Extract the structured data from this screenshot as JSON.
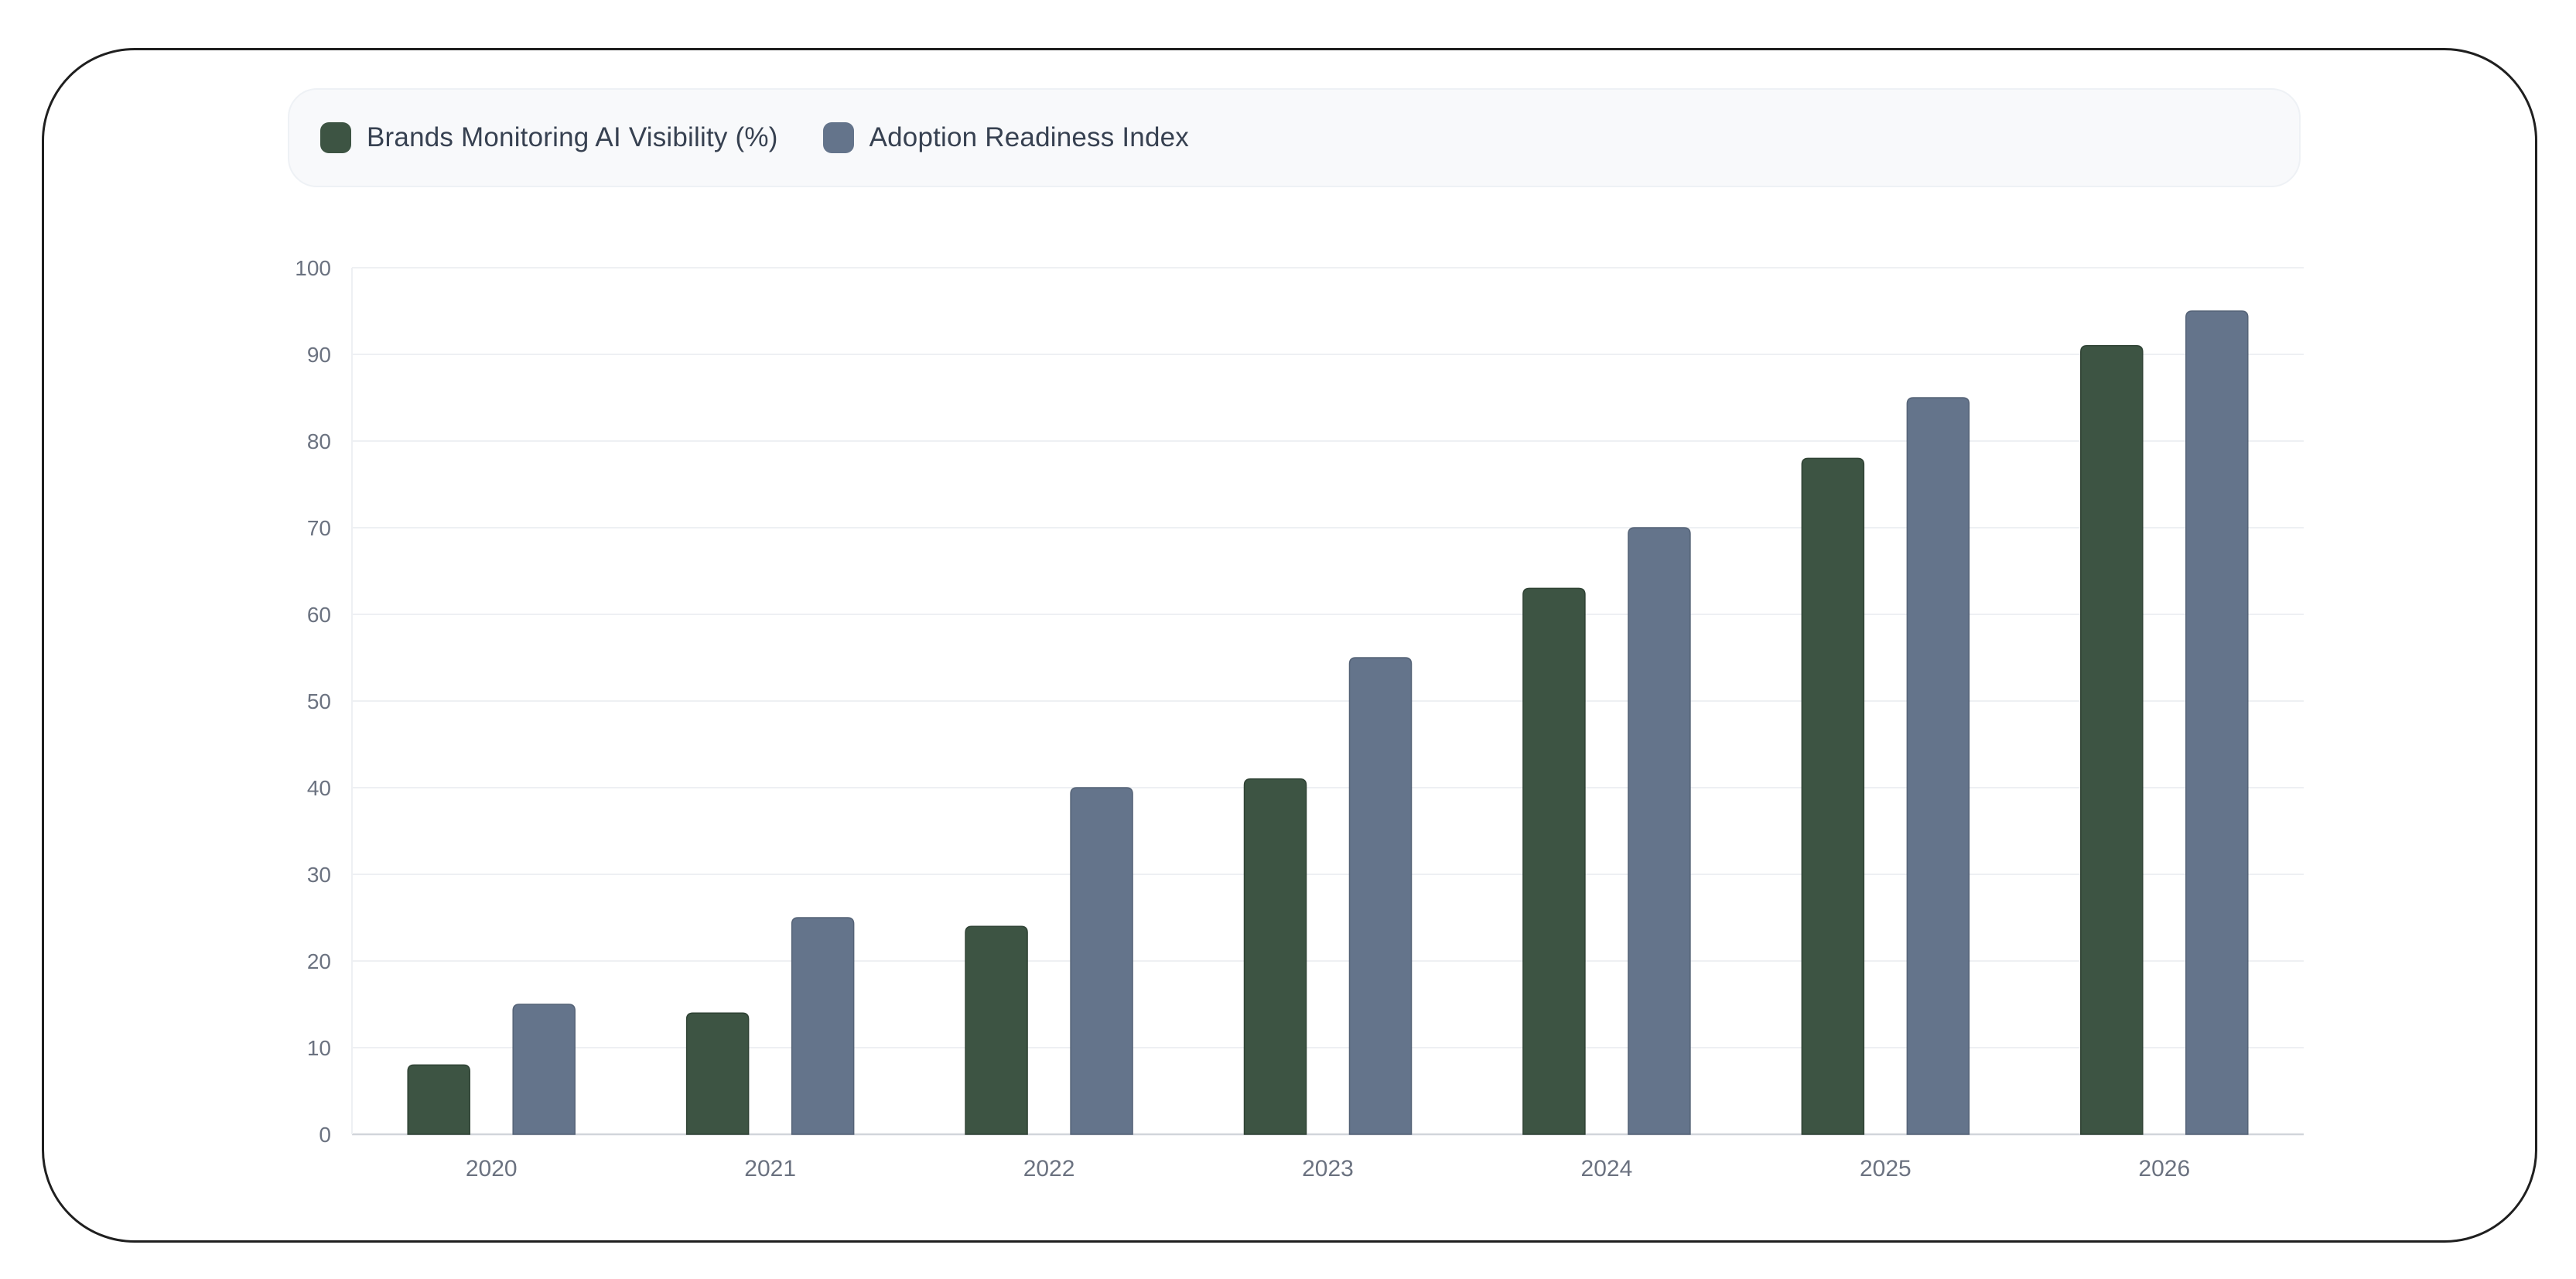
{
  "chart_data": {
    "type": "bar",
    "categories": [
      "2020",
      "2021",
      "2022",
      "2023",
      "2024",
      "2025",
      "2026"
    ],
    "series": [
      {
        "name": "Brands Monitoring AI Visibility (%)",
        "color": "#3d5443",
        "values": [
          8,
          14,
          24,
          41,
          63,
          78,
          91
        ]
      },
      {
        "name": "Adoption Readiness Index",
        "color": "#64748b",
        "values": [
          15,
          25,
          40,
          55,
          70,
          85,
          95
        ]
      }
    ],
    "yticks": [
      "0",
      "10",
      "20",
      "30",
      "40",
      "50",
      "60",
      "70",
      "80",
      "90",
      "100"
    ],
    "ylim": [
      0,
      100
    ],
    "grid": true,
    "legend_position": "top"
  }
}
